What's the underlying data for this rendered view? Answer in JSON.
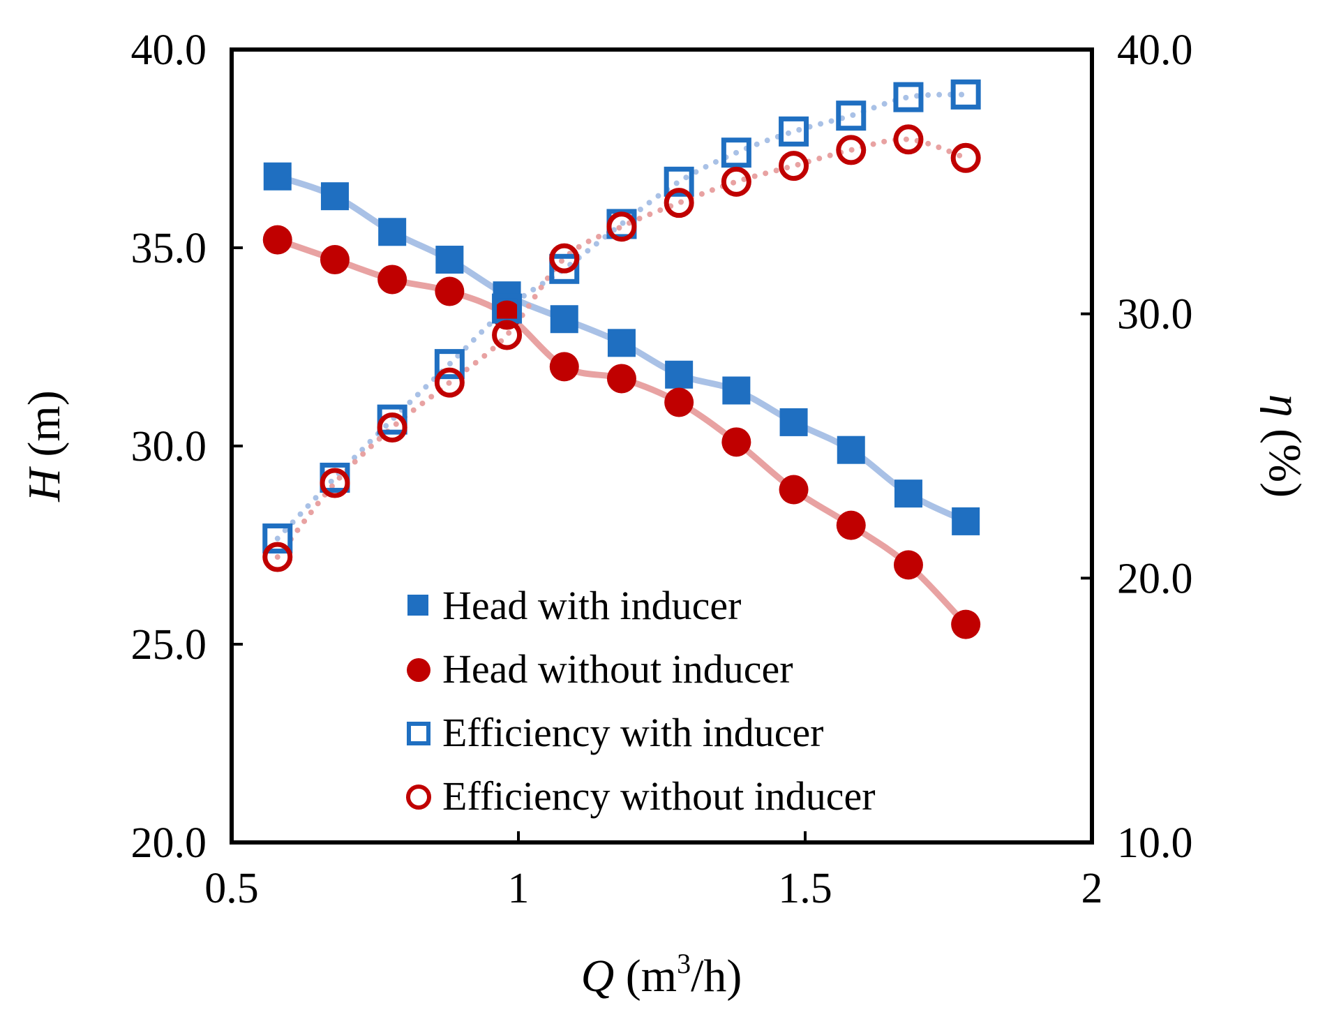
{
  "chart_data": {
    "type": "line",
    "x": [
      0.58,
      0.68,
      0.78,
      0.88,
      0.98,
      1.08,
      1.18,
      1.28,
      1.38,
      1.48,
      1.58,
      1.68,
      1.78
    ],
    "xlim": [
      0.5,
      2.0
    ],
    "x_ticks": [
      "0.5",
      "1",
      "1.5",
      "2"
    ],
    "y_left_lim": [
      20.0,
      40.0
    ],
    "y_left_ticks": [
      "20.0",
      "25.0",
      "30.0",
      "35.0",
      "40.0"
    ],
    "y_right_lim": [
      10.0,
      40.0
    ],
    "y_right_ticks": [
      "10.0",
      "20.0",
      "30.0",
      "40.0"
    ],
    "xlabel": {
      "symbol": "Q",
      "unit_pre": " (m",
      "sup": "3",
      "unit_post": "/h)"
    },
    "ylabel_left": {
      "symbol": "H",
      "unit": " (m)"
    },
    "ylabel_right": {
      "symbol": "η",
      "unit": " (%)"
    },
    "grid": false,
    "legend_position": "bottom-center",
    "series": [
      {
        "name": "Head with inducer",
        "axis": "left",
        "marker": "square-filled",
        "color": "#1f6fc1",
        "trend_color": "#a9c1e6",
        "trend": "solid",
        "values": [
          36.8,
          36.3,
          35.4,
          34.7,
          33.8,
          33.2,
          32.6,
          31.8,
          31.4,
          30.6,
          29.9,
          28.8,
          28.1
        ]
      },
      {
        "name": "Head without inducer",
        "axis": "left",
        "marker": "circle-filled",
        "color": "#c00000",
        "trend_color": "#e8a2a2",
        "trend": "solid",
        "values": [
          35.2,
          34.7,
          34.2,
          33.9,
          33.3,
          32.0,
          31.7,
          31.1,
          30.1,
          28.9,
          28.0,
          27.0,
          25.5
        ]
      },
      {
        "name": "Efficiency with inducer",
        "axis": "right",
        "marker": "square-open",
        "color": "#1f6fc1",
        "trend_color": "#a9c1e6",
        "trend": "dotted",
        "values": [
          21.5,
          23.8,
          26.0,
          28.1,
          30.2,
          31.7,
          33.4,
          35.0,
          36.1,
          36.9,
          37.5,
          38.2,
          38.3
        ]
      },
      {
        "name": "Efficiency without inducer",
        "axis": "right",
        "marker": "circle-open",
        "color": "#c00000",
        "trend_color": "#e8a2a2",
        "trend": "dotted",
        "values": [
          20.8,
          23.6,
          25.7,
          27.4,
          29.2,
          32.1,
          33.3,
          34.2,
          35.0,
          35.6,
          36.2,
          36.6,
          35.9
        ]
      }
    ]
  }
}
